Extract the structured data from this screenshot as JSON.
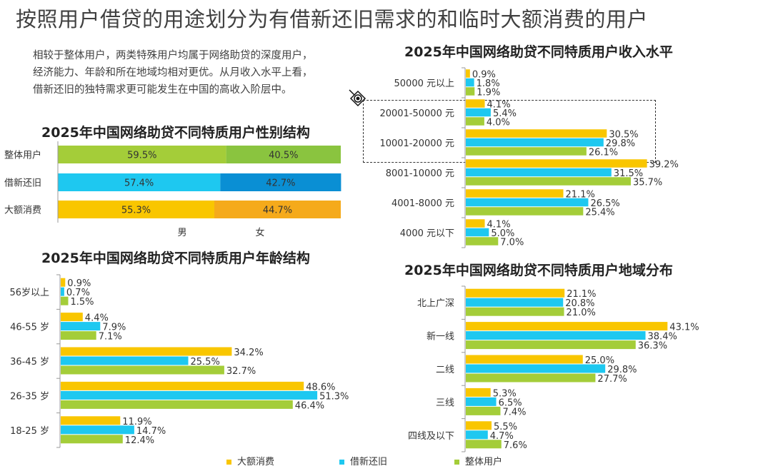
{
  "page_title": "按照用户借贷的用途划分为有借新还旧需求的和临时大额消费的用户",
  "description_lines": [
    "相较于整体用户，两类特殊用户均属于网络助贷的深度用户，",
    "经济能力、年龄和所在地域均相对更优。从月收入水平上看，",
    "借新还旧的独特需求更可能发生在中国的高收入阶层中。"
  ],
  "colors": {
    "large": "#F9C600",
    "renew": "#1EC8F0",
    "overall": "#A4CD39",
    "female_overall": "#8AC43F",
    "female_renew": "#0A8FD4",
    "female_large": "#F5AA1B"
  },
  "legend": [
    {
      "label": "大额消费",
      "color": "#F9C600"
    },
    {
      "label": "借新还旧",
      "color": "#1EC8F0"
    },
    {
      "label": "整体用户",
      "color": "#A4CD39"
    }
  ],
  "chart_data": [
    {
      "type": "bar",
      "orientation": "horizontal-stacked",
      "title": "2025年中国网络助贷不同特质用户性别结构",
      "categories": [
        "整体用户",
        "借新还旧",
        "大额消费"
      ],
      "series": [
        {
          "name": "男",
          "values": [
            59.5,
            57.4,
            55.3
          ],
          "labels": [
            "59.5%",
            "57.4%",
            "55.3%"
          ]
        },
        {
          "name": "女",
          "values": [
            40.5,
            42.7,
            44.7
          ],
          "labels": [
            "40.5%",
            "42.7%",
            "44.7%"
          ]
        }
      ],
      "xlim": [
        0,
        100
      ]
    },
    {
      "type": "bar",
      "orientation": "horizontal",
      "title": "2025年中国网络助贷不同特质用户年龄结构",
      "categories": [
        "56岁以上",
        "46-55 岁",
        "36-45 岁",
        "26-35 岁",
        "18-25 岁"
      ],
      "series": [
        {
          "name": "大额消费",
          "values": [
            0.9,
            4.4,
            34.2,
            48.6,
            11.9
          ],
          "labels": [
            "0.9%",
            "4.4%",
            "34.2%",
            "48.6%",
            "11.9%"
          ]
        },
        {
          "name": "借新还旧",
          "values": [
            0.7,
            7.9,
            25.5,
            51.3,
            14.7
          ],
          "labels": [
            "0.7%",
            "7.9%",
            "25.5%",
            "51.3%",
            "14.7%"
          ]
        },
        {
          "name": "整体用户",
          "values": [
            1.5,
            7.1,
            32.7,
            46.4,
            12.4
          ],
          "labels": [
            "1.5%",
            "7.1%",
            "32.7%",
            "46.4%",
            "12.4%"
          ]
        }
      ]
    },
    {
      "type": "bar",
      "orientation": "horizontal",
      "title": "2025年中国网络助贷不同特质用户收入水平",
      "categories": [
        "50000 元以上",
        "20001-50000 元",
        "10001-20000 元",
        "8001-10000 元",
        "4001-8000 元",
        "4000 元以下"
      ],
      "series": [
        {
          "name": "大额消费",
          "values": [
            0.9,
            4.1,
            30.5,
            39.2,
            21.1,
            4.1
          ],
          "labels": [
            "0.9%",
            "4.1%",
            "30.5%",
            "39.2%",
            "21.1%",
            "4.1%"
          ]
        },
        {
          "name": "借新还旧",
          "values": [
            1.8,
            5.4,
            29.8,
            31.5,
            26.5,
            5.0
          ],
          "labels": [
            "1.8%",
            "5.4%",
            "29.8%",
            "31.5%",
            "26.5%",
            "5.0%"
          ]
        },
        {
          "name": "整体用户",
          "values": [
            1.9,
            4.0,
            26.1,
            35.7,
            25.4,
            7.0
          ],
          "labels": [
            "1.9%",
            "4.0%",
            "26.1%",
            "35.7%",
            "25.4%",
            "7.0%"
          ]
        }
      ]
    },
    {
      "type": "bar",
      "orientation": "horizontal",
      "title": "2025年中国网络助贷不同特质用户地域分布",
      "categories": [
        "北上广深",
        "新一线",
        "二线",
        "三线",
        "四线及以下"
      ],
      "series": [
        {
          "name": "大额消费",
          "values": [
            21.1,
            43.1,
            25.0,
            5.3,
            5.5
          ],
          "labels": [
            "21.1%",
            "43.1%",
            "25.0%",
            "5.3%",
            "5.5%"
          ]
        },
        {
          "name": "借新还旧",
          "values": [
            20.8,
            38.4,
            29.8,
            6.5,
            4.7
          ],
          "labels": [
            "20.8%",
            "38.4%",
            "29.8%",
            "6.5%",
            "4.7%"
          ]
        },
        {
          "name": "整体用户",
          "values": [
            21.0,
            36.3,
            27.7,
            7.4,
            7.6
          ],
          "labels": [
            "21.0%",
            "36.3%",
            "27.7%",
            "7.4%",
            "7.6%"
          ]
        }
      ]
    }
  ]
}
